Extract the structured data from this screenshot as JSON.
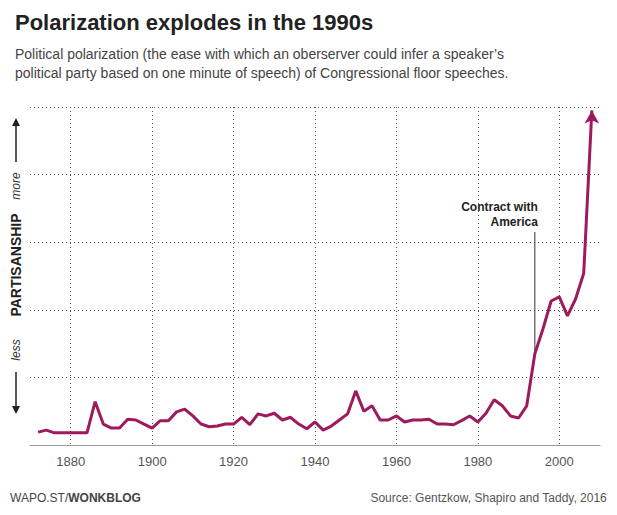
{
  "chart_data": {
    "type": "line",
    "title": "Polarization explodes in the 1990s",
    "subtitle": "Political polarization (the ease with which an oberserver could infer a speaker’s\npolitical party based on one minute of speech) of Congressional floor speeches.",
    "ylabel": "PARTISANSHIP",
    "ylabel_high": "more",
    "ylabel_low": "less",
    "x": [
      1872,
      1874,
      1876,
      1878,
      1880,
      1882,
      1884,
      1886,
      1888,
      1890,
      1892,
      1894,
      1896,
      1898,
      1900,
      1902,
      1904,
      1906,
      1908,
      1910,
      1912,
      1914,
      1916,
      1918,
      1920,
      1922,
      1924,
      1926,
      1928,
      1930,
      1932,
      1934,
      1936,
      1938,
      1940,
      1942,
      1944,
      1946,
      1948,
      1950,
      1952,
      1954,
      1956,
      1958,
      1960,
      1962,
      1964,
      1966,
      1968,
      1970,
      1972,
      1974,
      1976,
      1978,
      1980,
      1982,
      1984,
      1986,
      1988,
      1990,
      1992,
      1994,
      1996,
      1998,
      2000,
      2002,
      2004,
      2006,
      2008
    ],
    "values": [
      0.19,
      0.22,
      0.18,
      0.18,
      0.18,
      0.18,
      0.18,
      0.64,
      0.31,
      0.25,
      0.25,
      0.38,
      0.37,
      0.31,
      0.25,
      0.36,
      0.36,
      0.49,
      0.53,
      0.43,
      0.31,
      0.27,
      0.28,
      0.31,
      0.31,
      0.41,
      0.3,
      0.46,
      0.43,
      0.47,
      0.37,
      0.41,
      0.31,
      0.24,
      0.34,
      0.22,
      0.28,
      0.37,
      0.46,
      0.8,
      0.5,
      0.58,
      0.37,
      0.37,
      0.43,
      0.34,
      0.37,
      0.37,
      0.38,
      0.31,
      0.31,
      0.3,
      0.36,
      0.43,
      0.34,
      0.47,
      0.67,
      0.58,
      0.43,
      0.4,
      0.58,
      1.35,
      1.72,
      2.13,
      2.19,
      1.91,
      2.16,
      2.54,
      4.95
    ],
    "color": "#9e1a5c",
    "xlim": [
      1870,
      2010
    ],
    "xticks": [
      1880,
      1900,
      1920,
      1940,
      1960,
      1980,
      2000
    ],
    "ylim": [
      0,
      5
    ],
    "yticks": [
      0,
      1,
      2,
      3,
      4,
      5
    ],
    "grid": true,
    "tick_labels": "x",
    "annotations": [
      {
        "text": "Contract with\nAmerica",
        "x": 1994
      }
    ],
    "footer": "WAPO.ST/WONKBLOG",
    "source": "Source: Gentzkow, Shapiro and Taddy, 2016"
  }
}
